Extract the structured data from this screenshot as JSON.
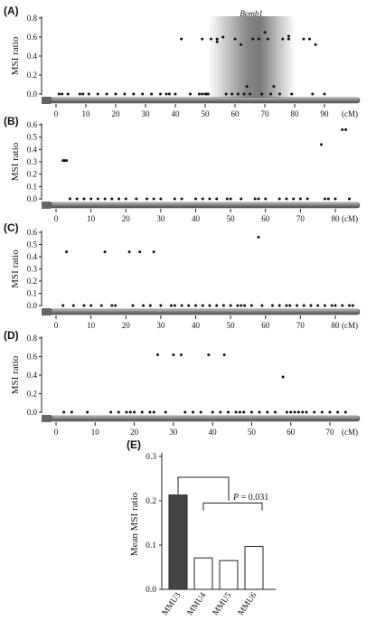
{
  "chart_data": [
    {
      "panel": "(A)",
      "type": "scatter",
      "ylabel": "MSI ratio",
      "xunit": "(cM)",
      "ylim": [
        0.0,
        0.8
      ],
      "xlim": [
        -2,
        94
      ],
      "yticks": [
        "0.0",
        "0.2",
        "0.4",
        "0.6",
        "0.8"
      ],
      "xticks": [
        "0",
        "10",
        "20",
        "30",
        "40",
        "50",
        "60",
        "70",
        "80",
        "90"
      ],
      "region": {
        "label": "Bomb1",
        "from": 51,
        "to": 80
      },
      "points": [
        [
          1,
          0
        ],
        [
          2,
          0
        ],
        [
          4,
          0
        ],
        [
          8,
          0
        ],
        [
          9,
          0
        ],
        [
          11,
          0
        ],
        [
          14,
          0
        ],
        [
          17,
          0
        ],
        [
          20,
          0
        ],
        [
          23,
          0
        ],
        [
          26,
          0
        ],
        [
          29,
          0
        ],
        [
          32,
          0
        ],
        [
          35,
          0
        ],
        [
          37,
          0
        ],
        [
          38,
          0
        ],
        [
          40,
          0
        ],
        [
          42,
          0.58
        ],
        [
          45,
          0
        ],
        [
          48,
          0
        ],
        [
          49,
          0
        ],
        [
          50,
          0
        ],
        [
          50.5,
          0
        ],
        [
          51,
          0
        ],
        [
          49,
          0.58
        ],
        [
          52,
          0.58
        ],
        [
          54,
          0.55
        ],
        [
          54,
          0.58
        ],
        [
          56,
          0.6
        ],
        [
          57,
          0
        ],
        [
          59,
          0
        ],
        [
          60,
          0.58
        ],
        [
          61,
          0
        ],
        [
          62,
          0.52
        ],
        [
          63,
          0
        ],
        [
          64,
          0.08
        ],
        [
          65,
          0
        ],
        [
          66,
          0.58
        ],
        [
          68,
          0.58
        ],
        [
          69,
          0
        ],
        [
          70,
          0.65
        ],
        [
          71,
          0.58
        ],
        [
          72,
          0
        ],
        [
          73,
          0.08
        ],
        [
          75,
          0
        ],
        [
          76,
          0.58
        ],
        [
          78,
          0.58
        ],
        [
          78,
          0.61
        ],
        [
          79,
          0
        ],
        [
          83,
          0.58
        ],
        [
          85,
          0.58
        ],
        [
          86,
          0
        ],
        [
          87,
          0.52
        ],
        [
          90,
          0
        ]
      ]
    },
    {
      "panel": "(B)",
      "type": "scatter",
      "ylabel": "MSI ratio",
      "xunit": "(cM)",
      "ylim": [
        0.0,
        0.6
      ],
      "xlim": [
        -2,
        88
      ],
      "yticks": [
        "0.0",
        "0.1",
        "0.2",
        "0.3",
        "0.4",
        "0.5",
        "0.6"
      ],
      "xticks": [
        "0",
        "10",
        "20",
        "30",
        "40",
        "50",
        "60",
        "70",
        "80"
      ],
      "points": [
        [
          2,
          0.31
        ],
        [
          2.5,
          0.31
        ],
        [
          3,
          0.31
        ],
        [
          4,
          0
        ],
        [
          6,
          0
        ],
        [
          8,
          0
        ],
        [
          10,
          0
        ],
        [
          12,
          0
        ],
        [
          14,
          0
        ],
        [
          16,
          0
        ],
        [
          18,
          0
        ],
        [
          20,
          0
        ],
        [
          23,
          0
        ],
        [
          26,
          0
        ],
        [
          28,
          0
        ],
        [
          30,
          0
        ],
        [
          34,
          0
        ],
        [
          36,
          0
        ],
        [
          40,
          0
        ],
        [
          42,
          0
        ],
        [
          44,
          0
        ],
        [
          46,
          0
        ],
        [
          49,
          0
        ],
        [
          50,
          0
        ],
        [
          53,
          0
        ],
        [
          57,
          0
        ],
        [
          58,
          0
        ],
        [
          60,
          0
        ],
        [
          64,
          0
        ],
        [
          66,
          0
        ],
        [
          68,
          0
        ],
        [
          70,
          0
        ],
        [
          72,
          0
        ],
        [
          76,
          0.44
        ],
        [
          77,
          0
        ],
        [
          78,
          0
        ],
        [
          80,
          0
        ],
        [
          82,
          0.56
        ],
        [
          83,
          0.56
        ],
        [
          84,
          0
        ]
      ]
    },
    {
      "panel": "(C)",
      "type": "scatter",
      "ylabel": "MSI ratio",
      "xunit": "(cM)",
      "ylim": [
        0.0,
        0.6
      ],
      "xlim": [
        -2,
        88
      ],
      "yticks": [
        "0.0",
        "0.1",
        "0.2",
        "0.3",
        "0.4",
        "0.5",
        "0.6"
      ],
      "xticks": [
        "0",
        "10",
        "20",
        "30",
        "40",
        "50",
        "60",
        "70",
        "80"
      ],
      "points": [
        [
          2,
          0
        ],
        [
          3,
          0.44
        ],
        [
          5,
          0
        ],
        [
          8,
          0
        ],
        [
          10,
          0
        ],
        [
          13,
          0
        ],
        [
          14,
          0.44
        ],
        [
          16,
          0
        ],
        [
          17,
          0
        ],
        [
          21,
          0.44
        ],
        [
          22,
          0
        ],
        [
          24,
          0.44
        ],
        [
          25,
          0
        ],
        [
          27,
          0
        ],
        [
          28,
          0.44
        ],
        [
          30,
          0
        ],
        [
          33,
          0
        ],
        [
          34,
          0
        ],
        [
          36,
          0
        ],
        [
          38,
          0
        ],
        [
          40,
          0
        ],
        [
          42,
          0
        ],
        [
          44,
          0
        ],
        [
          46,
          0
        ],
        [
          48,
          0
        ],
        [
          50,
          0
        ],
        [
          52,
          0
        ],
        [
          53,
          0
        ],
        [
          54,
          0
        ],
        [
          56,
          0
        ],
        [
          58,
          0.56
        ],
        [
          59,
          0
        ],
        [
          62,
          0
        ],
        [
          64,
          0
        ],
        [
          66,
          0
        ],
        [
          67,
          0
        ],
        [
          69,
          0
        ],
        [
          71,
          0
        ],
        [
          73,
          0
        ],
        [
          75,
          0
        ],
        [
          77,
          0
        ],
        [
          79,
          0
        ],
        [
          80,
          0
        ],
        [
          82,
          0
        ],
        [
          84,
          0
        ],
        [
          85,
          0
        ]
      ]
    },
    {
      "panel": "(D)",
      "type": "scatter",
      "ylabel": "MSI ratio",
      "xunit": "(cM)",
      "ylim": [
        0.0,
        0.8
      ],
      "xlim": [
        -2,
        80
      ],
      "yticks": [
        "0.0",
        "0.2",
        "0.4",
        "0.6",
        "0.8"
      ],
      "xticks": [
        "0",
        "10",
        "20",
        "30",
        "40",
        "50",
        "60",
        "70"
      ],
      "points": [
        [
          2,
          0
        ],
        [
          4,
          0
        ],
        [
          8,
          0
        ],
        [
          14,
          0
        ],
        [
          16,
          0
        ],
        [
          18,
          0
        ],
        [
          19,
          0
        ],
        [
          20,
          0
        ],
        [
          22,
          0
        ],
        [
          24,
          0
        ],
        [
          25,
          0
        ],
        [
          26,
          0.62
        ],
        [
          28,
          0
        ],
        [
          30,
          0.62
        ],
        [
          32,
          0.62
        ],
        [
          33,
          0
        ],
        [
          35,
          0
        ],
        [
          37,
          0
        ],
        [
          39,
          0.62
        ],
        [
          40,
          0
        ],
        [
          42,
          0
        ],
        [
          43,
          0.62
        ],
        [
          44,
          0
        ],
        [
          46,
          0
        ],
        [
          47,
          0
        ],
        [
          48,
          0
        ],
        [
          50,
          0
        ],
        [
          52,
          0
        ],
        [
          54,
          0
        ],
        [
          56,
          0
        ],
        [
          58,
          0.38
        ],
        [
          59,
          0
        ],
        [
          60,
          0
        ],
        [
          61,
          0
        ],
        [
          62,
          0
        ],
        [
          63,
          0
        ],
        [
          64,
          0
        ],
        [
          66,
          0
        ],
        [
          68,
          0
        ],
        [
          70,
          0
        ],
        [
          72,
          0
        ],
        [
          74,
          0
        ]
      ]
    },
    {
      "panel": "(E)",
      "type": "bar",
      "ylabel": "Mean MSI ratio",
      "ylim": [
        0.0,
        0.3
      ],
      "yticks": [
        "0.0",
        "0.1",
        "0.2",
        "0.3"
      ],
      "categories": [
        "MMU3",
        "MMU4",
        "MMU5",
        "MMU6"
      ],
      "values": [
        0.213,
        0.071,
        0.065,
        0.097
      ],
      "bar_colors": [
        "#444444",
        "#ffffff",
        "#ffffff",
        "#ffffff"
      ],
      "annotation": {
        "label": "P",
        "text": " = 0.031"
      }
    }
  ]
}
